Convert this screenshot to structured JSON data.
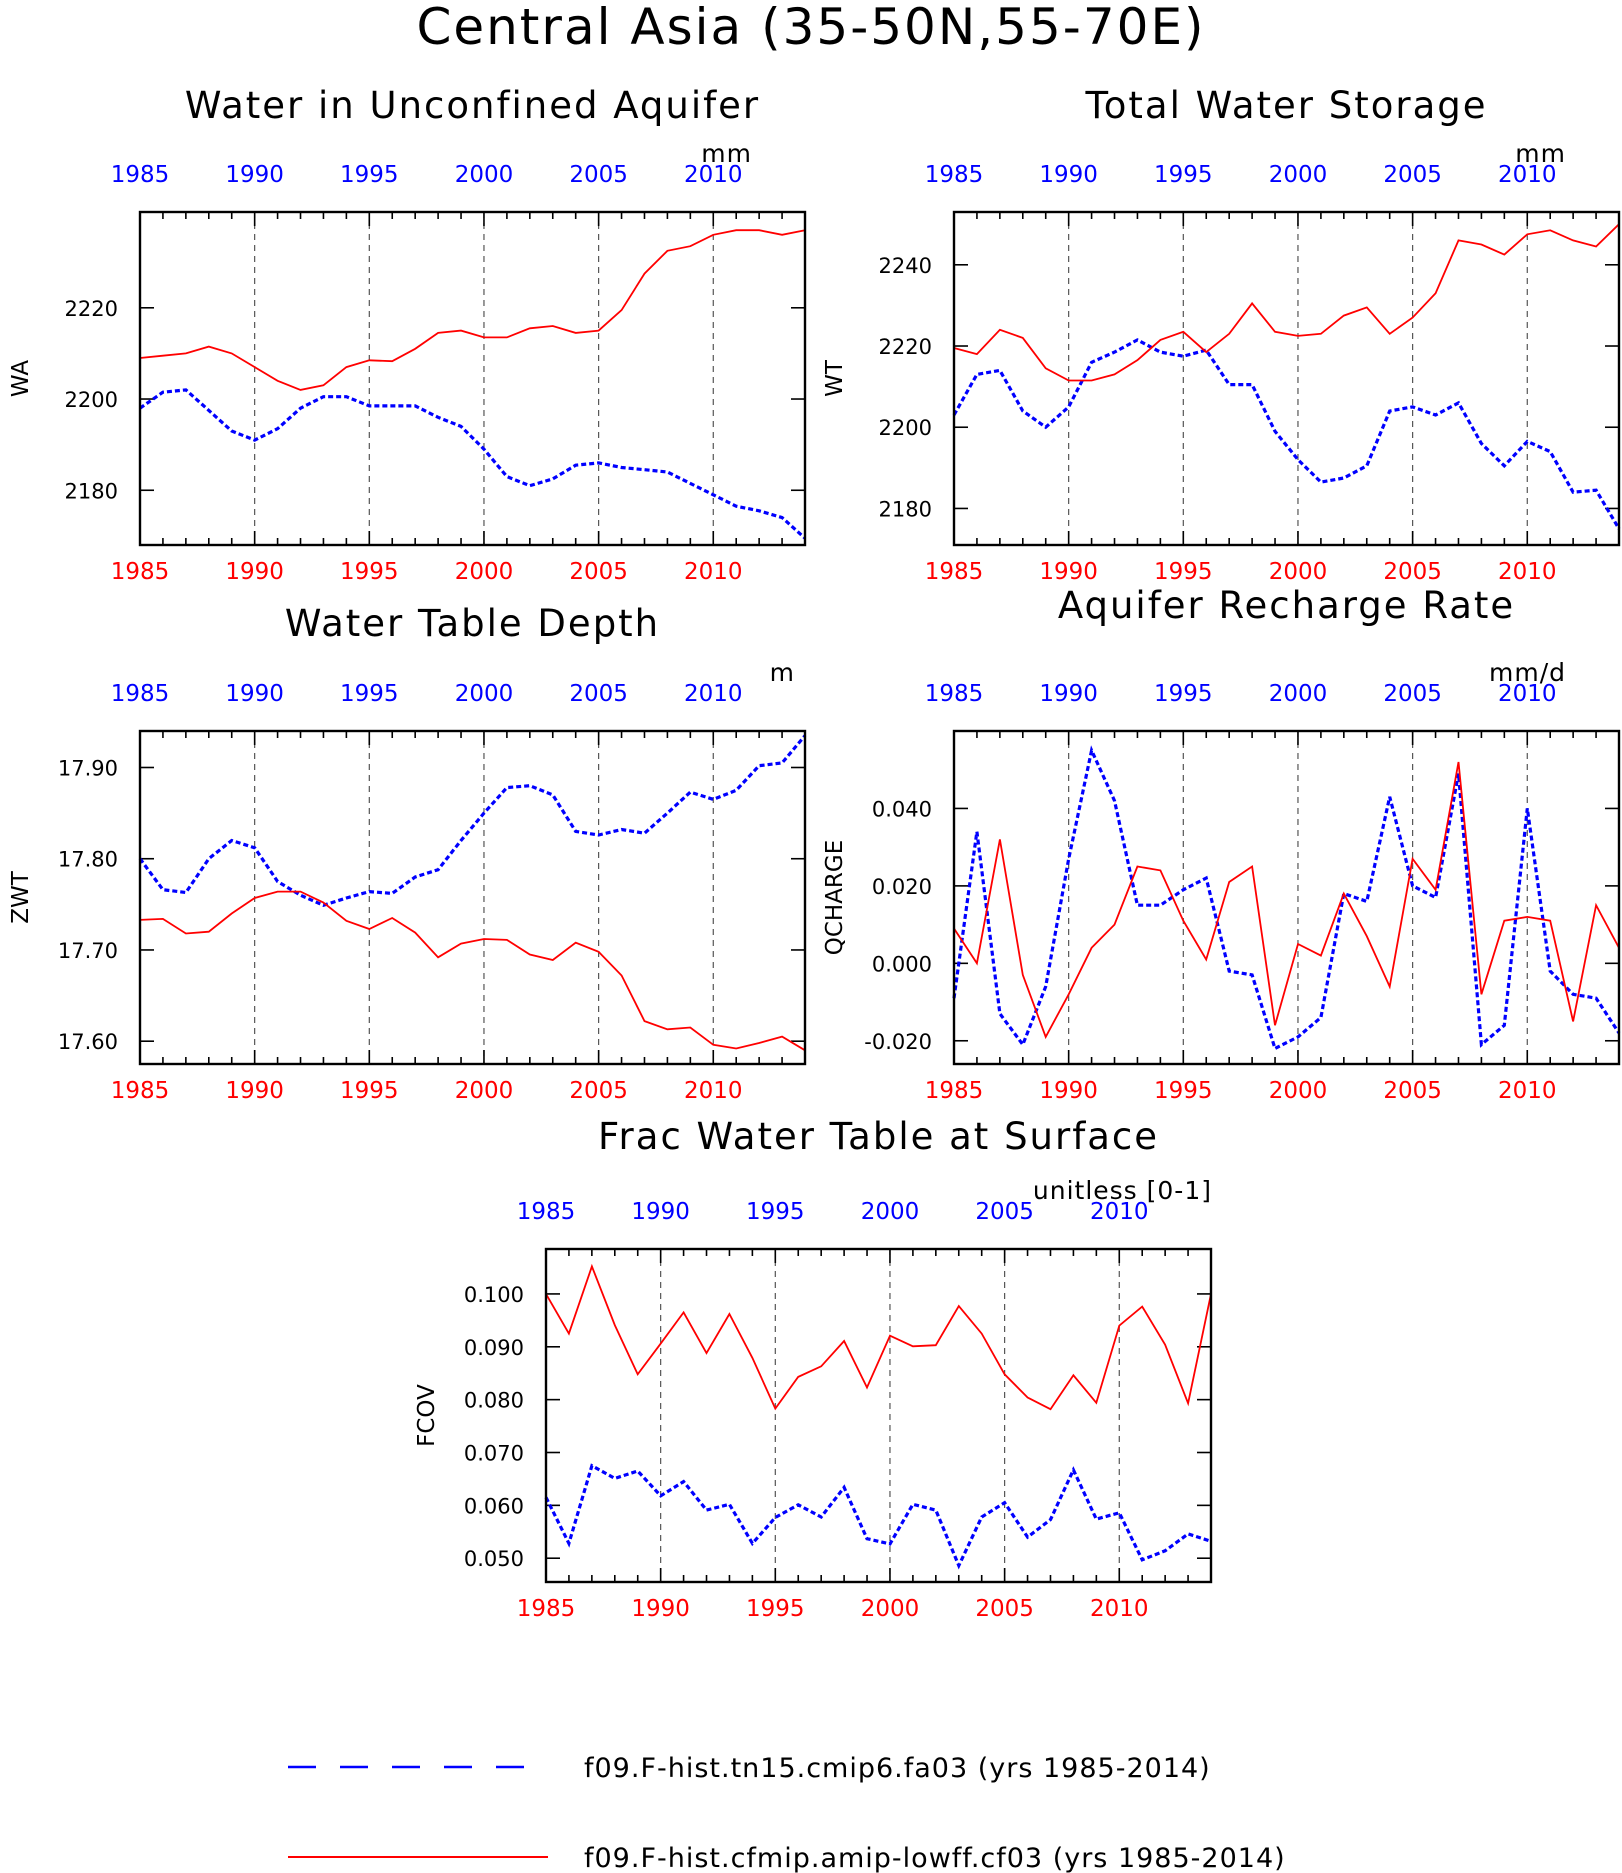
{
  "figure_title": "Central Asia (35-50N,55-70E)",
  "legend": [
    {
      "label": "f09.F-hist.tn15.cmip6.fa03 (yrs 1985-2014)",
      "color": "#0000ff",
      "style": "dashed"
    },
    {
      "label": "f09.F-hist.cfmip.amip-lowff.cf03 (yrs 1985-2014)",
      "color": "#ff0000",
      "style": "solid"
    }
  ],
  "colors": {
    "series_1": "#0000ff",
    "series_2": "#ff0000",
    "axis": "#000000",
    "grid": "#555555"
  },
  "chart_data": [
    {
      "type": "line",
      "title": "Water in Unconfined Aquifer",
      "ylabel": "WA",
      "units": "mm",
      "xlim": [
        1985,
        2014
      ],
      "ylim": [
        2168,
        2241
      ],
      "yticks": [
        2180,
        2200,
        2220
      ],
      "ytick_labels": [
        "2180",
        "2200",
        "2220"
      ],
      "xticks": [
        1985,
        1990,
        1995,
        2000,
        2005,
        2010
      ],
      "xtick_labels": [
        "1985",
        "1990",
        "1995",
        "2000",
        "2005",
        "2010"
      ],
      "grid": "vertical dashed at 1990, 1995, 2000, 2005, 2010",
      "x": [
        1985,
        1986,
        1987,
        1988,
        1989,
        1990,
        1991,
        1992,
        1993,
        1994,
        1995,
        1996,
        1997,
        1998,
        1999,
        2000,
        2001,
        2002,
        2003,
        2004,
        2005,
        2006,
        2007,
        2008,
        2009,
        2010,
        2011,
        2012,
        2013,
        2014
      ],
      "series": [
        {
          "name": "f09.F-hist.tn15.cmip6.fa03 (yrs 1985-2014)",
          "style": "dashed",
          "values": [
            2198,
            2201.5,
            2202,
            2197.5,
            2193,
            2191,
            2193.5,
            2198,
            2200.5,
            2200.5,
            2198.5,
            2198.5,
            2198.5,
            2196,
            2194,
            2189,
            2183,
            2181,
            2182.5,
            2185.5,
            2186,
            2185,
            2184.5,
            2184,
            2181.5,
            2179,
            2176.5,
            2175.5,
            2174,
            2169.5
          ]
        },
        {
          "name": "f09.F-hist.cfmip.amip-lowff.cf03 (yrs 1985-2014)",
          "style": "solid",
          "values": [
            2209,
            2209.5,
            2210,
            2211.5,
            2210,
            2207,
            2204,
            2202,
            2203,
            2207,
            2208.5,
            2208.3,
            2211,
            2214.5,
            2215,
            2213.5,
            2213.5,
            2215.5,
            2216,
            2214.5,
            2215,
            2219.5,
            2227.5,
            2232.5,
            2233.5,
            2236,
            2237,
            2237,
            2236,
            2237
          ]
        }
      ]
    },
    {
      "type": "line",
      "title": "Total Water Storage",
      "ylabel": "WT",
      "units": "mm",
      "xlim": [
        1985,
        2014
      ],
      "ylim": [
        2171,
        2253
      ],
      "yticks": [
        2180,
        2200,
        2220,
        2240
      ],
      "ytick_labels": [
        "2180",
        "2200",
        "2220",
        "2240"
      ],
      "xticks": [
        1985,
        1990,
        1995,
        2000,
        2005,
        2010
      ],
      "xtick_labels": [
        "1985",
        "1990",
        "1995",
        "2000",
        "2005",
        "2010"
      ],
      "grid": "vertical dashed at 1990, 1995, 2000, 2005, 2010",
      "x": [
        1985,
        1986,
        1987,
        1988,
        1989,
        1990,
        1991,
        1992,
        1993,
        1994,
        1995,
        1996,
        1997,
        1998,
        1999,
        2000,
        2001,
        2002,
        2003,
        2004,
        2005,
        2006,
        2007,
        2008,
        2009,
        2010,
        2011,
        2012,
        2013,
        2014
      ],
      "series": [
        {
          "name": "f09.F-hist.tn15.cmip6.fa03 (yrs 1985-2014)",
          "style": "dashed",
          "values": [
            2203,
            2213,
            2214,
            2204,
            2200,
            2205,
            2216,
            2218.5,
            2221.5,
            2218.5,
            2217.5,
            2219,
            2210.5,
            2210.5,
            2199,
            2192,
            2186.5,
            2187.5,
            2190.5,
            2204,
            2205,
            2203,
            2206,
            2196,
            2190.5,
            2196.5,
            2194,
            2184,
            2184.5,
            2175
          ]
        },
        {
          "name": "f09.F-hist.cfmip.amip-lowff.cf03 (yrs 1985-2014)",
          "style": "solid",
          "values": [
            2219.5,
            2218,
            2224,
            2222,
            2214.5,
            2211.5,
            2211.5,
            2213,
            2216.5,
            2221.5,
            2223.5,
            2218.5,
            2223,
            2230.5,
            2223.5,
            2222.5,
            2223,
            2227.5,
            2229.5,
            2223,
            2227,
            2233,
            2246,
            2245,
            2242.5,
            2247.5,
            2248.5,
            2246,
            2244.5,
            2250
          ]
        }
      ]
    },
    {
      "type": "line",
      "title": "Water Table Depth",
      "ylabel": "ZWT",
      "units": "m",
      "xlim": [
        1985,
        2014
      ],
      "ylim": [
        17.575,
        17.94
      ],
      "yticks": [
        17.6,
        17.7,
        17.8,
        17.9
      ],
      "ytick_labels": [
        "17.60",
        "17.70",
        "17.80",
        "17.90"
      ],
      "xticks": [
        1985,
        1990,
        1995,
        2000,
        2005,
        2010
      ],
      "xtick_labels": [
        "1985",
        "1990",
        "1995",
        "2000",
        "2005",
        "2010"
      ],
      "grid": "vertical dashed at 1990, 1995, 2000, 2005, 2010",
      "x": [
        1985,
        1986,
        1987,
        1988,
        1989,
        1990,
        1991,
        1992,
        1993,
        1994,
        1995,
        1996,
        1997,
        1998,
        1999,
        2000,
        2001,
        2002,
        2003,
        2004,
        2005,
        2006,
        2007,
        2008,
        2009,
        2010,
        2011,
        2012,
        2013,
        2014
      ],
      "series": [
        {
          "name": "f09.F-hist.tn15.cmip6.fa03 (yrs 1985-2014)",
          "style": "dashed",
          "values": [
            17.8,
            17.766,
            17.763,
            17.8,
            17.82,
            17.812,
            17.775,
            17.76,
            17.749,
            17.757,
            17.764,
            17.762,
            17.78,
            17.788,
            17.82,
            17.85,
            17.878,
            17.88,
            17.87,
            17.83,
            17.826,
            17.832,
            17.828,
            17.85,
            17.873,
            17.865,
            17.875,
            17.902,
            17.905,
            17.935
          ]
        },
        {
          "name": "f09.F-hist.cfmip.amip-lowff.cf03 (yrs 1985-2014)",
          "style": "solid",
          "values": [
            17.733,
            17.734,
            17.718,
            17.72,
            17.74,
            17.757,
            17.764,
            17.764,
            17.752,
            17.732,
            17.723,
            17.735,
            17.719,
            17.692,
            17.707,
            17.712,
            17.711,
            17.695,
            17.689,
            17.708,
            17.698,
            17.672,
            17.622,
            17.613,
            17.615,
            17.596,
            17.592,
            17.598,
            17.605,
            17.59
          ]
        }
      ]
    },
    {
      "type": "line",
      "title": "Aquifer Recharge Rate",
      "ylabel": "QCHARGE",
      "units": "mm/d",
      "xlim": [
        1985,
        2014
      ],
      "ylim": [
        -0.026,
        0.06
      ],
      "yticks": [
        -0.02,
        0.0,
        0.02,
        0.04
      ],
      "ytick_labels": [
        "-0.020",
        "0.000",
        "0.020",
        "0.040"
      ],
      "xticks": [
        1985,
        1990,
        1995,
        2000,
        2005,
        2010
      ],
      "xtick_labels": [
        "1985",
        "1990",
        "1995",
        "2000",
        "2005",
        "2010"
      ],
      "grid": "vertical dashed at 1990, 1995, 2000, 2005, 2010",
      "x": [
        1985,
        1986,
        1987,
        1988,
        1989,
        1990,
        1991,
        1992,
        1993,
        1994,
        1995,
        1996,
        1997,
        1998,
        1999,
        2000,
        2001,
        2002,
        2003,
        2004,
        2005,
        2006,
        2007,
        2008,
        2009,
        2010,
        2011,
        2012,
        2013,
        2014
      ],
      "series": [
        {
          "name": "f09.F-hist.tn15.cmip6.fa03 (yrs 1985-2014)",
          "style": "dashed",
          "values": [
            -0.009,
            0.034,
            -0.013,
            -0.021,
            -0.006,
            0.027,
            0.055,
            0.042,
            0.015,
            0.015,
            0.019,
            0.022,
            -0.002,
            -0.003,
            -0.022,
            -0.019,
            -0.014,
            0.018,
            0.016,
            0.043,
            0.02,
            0.017,
            0.049,
            -0.021,
            -0.016,
            0.04,
            -0.002,
            -0.008,
            -0.009,
            -0.018
          ]
        },
        {
          "name": "f09.F-hist.cfmip.amip-lowff.cf03 (yrs 1985-2014)",
          "style": "solid",
          "values": [
            0.009,
            0.0,
            0.032,
            -0.003,
            -0.019,
            -0.008,
            0.004,
            0.01,
            0.025,
            0.024,
            0.011,
            0.001,
            0.021,
            0.025,
            -0.016,
            0.005,
            0.002,
            0.018,
            0.007,
            -0.006,
            0.027,
            0.019,
            0.052,
            -0.008,
            0.011,
            0.012,
            0.011,
            -0.015,
            0.015,
            0.004
          ]
        }
      ]
    },
    {
      "type": "line",
      "title": "Frac Water Table at Surface",
      "ylabel": "FCOV",
      "units": "unitless [0-1]",
      "xlim": [
        1985,
        2014
      ],
      "ylim": [
        0.0455,
        0.1085
      ],
      "yticks": [
        0.05,
        0.06,
        0.07,
        0.08,
        0.09,
        0.1
      ],
      "ytick_labels": [
        "0.050",
        "0.060",
        "0.070",
        "0.080",
        "0.090",
        "0.100"
      ],
      "xticks": [
        1985,
        1990,
        1995,
        2000,
        2005,
        2010
      ],
      "xtick_labels": [
        "1985",
        "1990",
        "1995",
        "2000",
        "2005",
        "2010"
      ],
      "grid": "vertical dashed at 1990, 1995, 2000, 2005, 2010",
      "x": [
        1985,
        1986,
        1987,
        1988,
        1989,
        1990,
        1991,
        1992,
        1993,
        1994,
        1995,
        1996,
        1997,
        1998,
        1999,
        2000,
        2001,
        2002,
        2003,
        2004,
        2005,
        2006,
        2007,
        2008,
        2009,
        2010,
        2011,
        2012,
        2013,
        2014
      ],
      "series": [
        {
          "name": "f09.F-hist.tn15.cmip6.fa03 (yrs 1985-2014)",
          "style": "dashed",
          "values": [
            0.0615,
            0.0528,
            0.0675,
            0.0651,
            0.0665,
            0.0618,
            0.0645,
            0.0591,
            0.0602,
            0.0528,
            0.0577,
            0.0601,
            0.0578,
            0.0634,
            0.0537,
            0.0527,
            0.0602,
            0.0591,
            0.0486,
            0.0578,
            0.0605,
            0.054,
            0.0573,
            0.0667,
            0.0574,
            0.0586,
            0.0497,
            0.0514,
            0.0546,
            0.0532
          ]
        },
        {
          "name": "f09.F-hist.cfmip.amip-lowff.cf03 (yrs 1985-2014)",
          "style": "solid",
          "values": [
            0.1,
            0.0925,
            0.1052,
            0.0941,
            0.0848,
            0.0906,
            0.0965,
            0.0888,
            0.0962,
            0.0879,
            0.0783,
            0.0843,
            0.0863,
            0.0911,
            0.0823,
            0.0921,
            0.0901,
            0.0903,
            0.0977,
            0.0925,
            0.0848,
            0.0804,
            0.0782,
            0.0846,
            0.0794,
            0.094,
            0.0976,
            0.0904,
            0.0793,
            0.1
          ]
        }
      ]
    }
  ]
}
